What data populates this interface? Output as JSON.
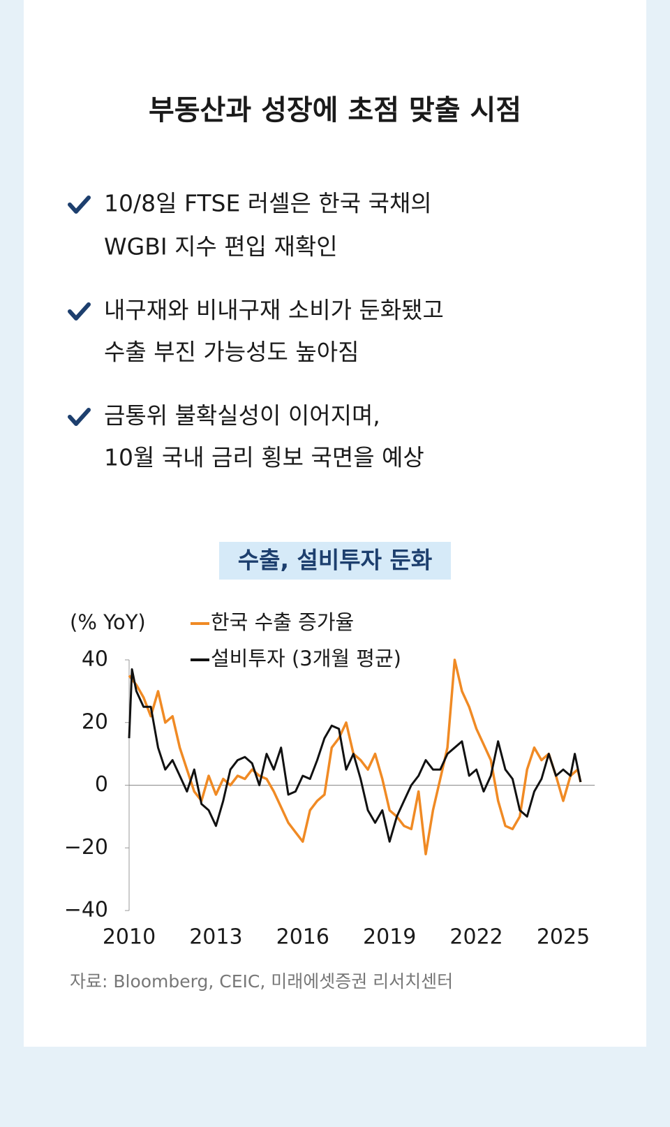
{
  "header": {
    "title": "부동산과 성장에 초점 맞출 시점"
  },
  "bullets": [
    [
      "10/8일 FTSE 러셀은 한국 국채의",
      "WGBI 지수 편입 재확인"
    ],
    [
      "내구재와 비내구재 소비가 둔화됐고",
      "수출 부진 가능성도 높아짐"
    ],
    [
      "금통위 불확실성이 이어지며,",
      "10월 국내 금리 횡보 국면을 예상"
    ]
  ],
  "chart_data": {
    "type": "line",
    "title": "수출, 설비투자 둔화",
    "y_label": "(% YoY)",
    "source": "자료: Bloomberg, CEIC, 미래에셋증권 리서치센터",
    "xlim": [
      2010,
      2025.8
    ],
    "xticks": [
      2010,
      2013,
      2016,
      2019,
      2022,
      2025
    ],
    "ylim": [
      -40,
      40
    ],
    "yticks": [
      {
        "value": -40,
        "label": "−40"
      },
      {
        "value": -20,
        "label": "−20"
      },
      0,
      20,
      40
    ],
    "zero_line": true,
    "series": [
      {
        "name": "한국 수출 증가율",
        "color": "#f08a24",
        "x": [
          2010,
          2010.25,
          2010.5,
          2010.75,
          2011,
          2011.25,
          2011.5,
          2011.75,
          2012,
          2012.25,
          2012.5,
          2012.75,
          2013,
          2013.25,
          2013.5,
          2013.75,
          2014,
          2014.25,
          2014.5,
          2014.75,
          2015,
          2015.25,
          2015.5,
          2015.75,
          2016,
          2016.25,
          2016.5,
          2016.75,
          2017,
          2017.25,
          2017.5,
          2017.75,
          2018,
          2018.25,
          2018.5,
          2018.75,
          2019,
          2019.25,
          2019.5,
          2019.75,
          2020,
          2020.25,
          2020.5,
          2020.75,
          2021,
          2021.25,
          2021.5,
          2021.75,
          2022,
          2022.25,
          2022.5,
          2022.75,
          2023,
          2023.25,
          2023.5,
          2023.75,
          2024,
          2024.25,
          2024.5,
          2024.75,
          2025,
          2025.25,
          2025.5,
          2025.6
        ],
        "values": [
          35,
          32,
          28,
          22,
          30,
          20,
          22,
          12,
          5,
          -2,
          -5,
          3,
          -3,
          2,
          0,
          3,
          2,
          5,
          3,
          2,
          -2,
          -7,
          -12,
          -15,
          -18,
          -8,
          -5,
          -3,
          12,
          15,
          20,
          10,
          8,
          5,
          10,
          2,
          -8,
          -10,
          -13,
          -14,
          -2,
          -22,
          -8,
          2,
          12,
          40,
          30,
          25,
          18,
          13,
          8,
          -5,
          -13,
          -14,
          -10,
          5,
          12,
          8,
          10,
          3,
          -5,
          3,
          5,
          1
        ]
      },
      {
        "name": "설비투자 (3개월 평균)",
        "color": "#111111",
        "x": [
          2010,
          2010.1,
          2010.25,
          2010.5,
          2010.75,
          2011,
          2011.25,
          2011.5,
          2011.75,
          2012,
          2012.25,
          2012.5,
          2012.75,
          2013,
          2013.25,
          2013.5,
          2013.75,
          2014,
          2014.25,
          2014.5,
          2014.75,
          2015,
          2015.25,
          2015.5,
          2015.75,
          2016,
          2016.25,
          2016.5,
          2016.75,
          2017,
          2017.25,
          2017.5,
          2017.75,
          2018,
          2018.25,
          2018.5,
          2018.75,
          2019,
          2019.25,
          2019.5,
          2019.75,
          2020,
          2020.25,
          2020.5,
          2020.75,
          2021,
          2021.25,
          2021.5,
          2021.75,
          2022,
          2022.25,
          2022.5,
          2022.75,
          2023,
          2023.25,
          2023.5,
          2023.75,
          2024,
          2024.25,
          2024.5,
          2024.75,
          2025,
          2025.25,
          2025.4,
          2025.6
        ],
        "values": [
          15,
          37,
          30,
          25,
          25,
          12,
          5,
          8,
          3,
          -2,
          5,
          -6,
          -8,
          -13,
          -5,
          5,
          8,
          9,
          7,
          0,
          10,
          5,
          12,
          -3,
          -2,
          3,
          2,
          8,
          15,
          19,
          18,
          5,
          10,
          2,
          -8,
          -12,
          -8,
          -18,
          -10,
          -5,
          0,
          3,
          8,
          5,
          5,
          10,
          12,
          14,
          3,
          5,
          -2,
          3,
          14,
          5,
          2,
          -8,
          -10,
          -2,
          2,
          10,
          3,
          5,
          3,
          10,
          1
        ]
      }
    ]
  }
}
